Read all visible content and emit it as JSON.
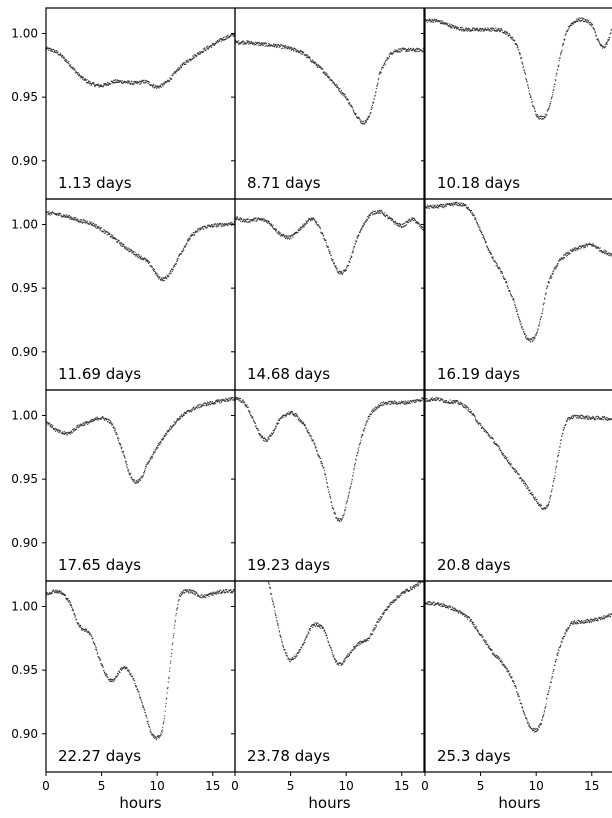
{
  "chart_data": {
    "type": "scatter",
    "layout": "4x3 grid of light-curve panels, shared axes",
    "xlabel": "hours",
    "xlim": [
      0,
      17
    ],
    "ylim": [
      0.87,
      1.02
    ],
    "x_ticks": [
      0,
      5,
      10,
      15
    ],
    "y_ticks": [
      "1.00",
      "0.95",
      "0.90"
    ],
    "y_tick_values": [
      1.0,
      0.95,
      0.9
    ],
    "grid": false,
    "marker_color": "#333333",
    "panels": [
      {
        "label": "1.13 days",
        "x": [
          0,
          1,
          2,
          3,
          4,
          5,
          6,
          7,
          8,
          9,
          10,
          11,
          12,
          13,
          14,
          15,
          16,
          17
        ],
        "y": [
          0.988,
          0.985,
          0.977,
          0.967,
          0.961,
          0.959,
          0.962,
          0.962,
          0.961,
          0.962,
          0.958,
          0.963,
          0.973,
          0.98,
          0.986,
          0.991,
          0.996,
          0.999
        ]
      },
      {
        "label": "8.71 days",
        "x": [
          0,
          1,
          2,
          3,
          4,
          5,
          6,
          7,
          8,
          9,
          10,
          10.5,
          11,
          11.5,
          12,
          12.5,
          13,
          14,
          15,
          16,
          17
        ],
        "y": [
          0.993,
          0.993,
          0.992,
          0.991,
          0.99,
          0.988,
          0.985,
          0.978,
          0.97,
          0.96,
          0.95,
          0.942,
          0.935,
          0.93,
          0.934,
          0.948,
          0.968,
          0.984,
          0.987,
          0.987,
          0.987
        ]
      },
      {
        "label": "10.18 days",
        "x": [
          0,
          1,
          2,
          3,
          4,
          5,
          6,
          7,
          8,
          8.5,
          9,
          9.5,
          10,
          10.5,
          11,
          11.5,
          12,
          12.5,
          13,
          14,
          15,
          15.5,
          16,
          16.5,
          17
        ],
        "y": [
          1.01,
          1.01,
          1.007,
          1.004,
          1.003,
          1.003,
          1.003,
          1.002,
          0.995,
          0.985,
          0.968,
          0.95,
          0.937,
          0.934,
          0.938,
          0.954,
          0.975,
          0.994,
          1.006,
          1.011,
          1.007,
          0.996,
          0.989,
          0.995,
          1.008
        ]
      },
      {
        "label": "11.69 days",
        "x": [
          0,
          1,
          2,
          3,
          4,
          5,
          6,
          7,
          8,
          9,
          9.5,
          10,
          10.5,
          11,
          11.5,
          12,
          13,
          14,
          15,
          16,
          17
        ],
        "y": [
          1.009,
          1.008,
          1.006,
          1.003,
          1.001,
          0.996,
          0.99,
          0.983,
          0.977,
          0.972,
          0.967,
          0.96,
          0.957,
          0.96,
          0.967,
          0.976,
          0.99,
          0.997,
          0.999,
          1.0,
          1.001
        ]
      },
      {
        "label": "14.68 days",
        "x": [
          0,
          1,
          2,
          3,
          4,
          5,
          6,
          7,
          8,
          9,
          9.5,
          10,
          10.5,
          11,
          12,
          13,
          14,
          15,
          16,
          17
        ],
        "y": [
          1.005,
          1.003,
          1.004,
          1.002,
          0.993,
          0.99,
          0.998,
          1.004,
          0.99,
          0.968,
          0.962,
          0.965,
          0.976,
          0.99,
          1.006,
          1.01,
          1.004,
          0.999,
          1.004,
          0.996
        ]
      },
      {
        "label": "16.19 days",
        "x": [
          0,
          1,
          2,
          3,
          4,
          5,
          6,
          7,
          8,
          8.5,
          9,
          9.5,
          10,
          10.5,
          11,
          12,
          13,
          14,
          15,
          16,
          17
        ],
        "y": [
          1.014,
          1.014,
          1.015,
          1.016,
          1.012,
          0.995,
          0.975,
          0.96,
          0.94,
          0.925,
          0.913,
          0.909,
          0.914,
          0.93,
          0.952,
          0.97,
          0.978,
          0.982,
          0.984,
          0.979,
          0.976
        ]
      },
      {
        "label": "17.65 days",
        "x": [
          0,
          1,
          2,
          3,
          4,
          5,
          6,
          7,
          7.5,
          8,
          8.5,
          9,
          10,
          11,
          12,
          13,
          14,
          15,
          16,
          17
        ],
        "y": [
          0.995,
          0.988,
          0.986,
          0.992,
          0.995,
          0.998,
          0.992,
          0.97,
          0.955,
          0.948,
          0.95,
          0.96,
          0.975,
          0.988,
          0.998,
          1.004,
          1.008,
          1.01,
          1.012,
          1.013
        ]
      },
      {
        "label": "19.23 days",
        "x": [
          0,
          1,
          2,
          2.5,
          3,
          4,
          5,
          6,
          7,
          8,
          8.5,
          9,
          9.5,
          10,
          11,
          12,
          13,
          14,
          15,
          16,
          17
        ],
        "y": [
          1.014,
          1.008,
          0.99,
          0.982,
          0.982,
          0.996,
          1.002,
          0.995,
          0.98,
          0.958,
          0.938,
          0.922,
          0.918,
          0.93,
          0.97,
          0.998,
          1.008,
          1.01,
          1.01,
          1.011,
          1.013
        ]
      },
      {
        "label": "20.8 days",
        "x": [
          0,
          1,
          2,
          3,
          4,
          5,
          6,
          7,
          8,
          9,
          10,
          10.5,
          11,
          11.5,
          12,
          12.5,
          13,
          14,
          15,
          16,
          17
        ],
        "y": [
          1.012,
          1.013,
          1.011,
          1.01,
          1.004,
          0.992,
          0.982,
          0.97,
          0.958,
          0.946,
          0.934,
          0.928,
          0.929,
          0.945,
          0.97,
          0.99,
          0.998,
          0.999,
          0.998,
          0.998,
          0.997
        ]
      },
      {
        "label": "22.27 days",
        "x": [
          0,
          1,
          2,
          3,
          4,
          5,
          5.5,
          6,
          7,
          8,
          9,
          9.5,
          10,
          10.5,
          11,
          11.5,
          12,
          13,
          14,
          15,
          16,
          17
        ],
        "y": [
          1.01,
          1.012,
          1.005,
          0.985,
          0.978,
          0.955,
          0.945,
          0.942,
          0.952,
          0.94,
          0.915,
          0.9,
          0.897,
          0.905,
          0.94,
          0.98,
          1.008,
          1.012,
          1.008,
          1.01,
          1.012,
          1.012
        ]
      },
      {
        "label": "23.78 days",
        "x": [
          3,
          3.5,
          4,
          4.5,
          5,
          6,
          7,
          8,
          8.5,
          9,
          9.5,
          10,
          11,
          12,
          13,
          14,
          15,
          16,
          17
        ],
        "y": [
          1.018,
          1.0,
          0.98,
          0.965,
          0.958,
          0.968,
          0.985,
          0.982,
          0.97,
          0.958,
          0.955,
          0.96,
          0.97,
          0.975,
          0.99,
          1.002,
          1.01,
          1.015,
          1.02
        ]
      },
      {
        "label": "25.3 days",
        "x": [
          0,
          1,
          2,
          3,
          4,
          5,
          6,
          7,
          8,
          9,
          9.5,
          10,
          10.5,
          11,
          12,
          13,
          14,
          15,
          16,
          17
        ],
        "y": [
          1.003,
          1.002,
          1.0,
          0.996,
          0.99,
          0.978,
          0.965,
          0.955,
          0.94,
          0.915,
          0.905,
          0.903,
          0.91,
          0.93,
          0.965,
          0.985,
          0.988,
          0.989,
          0.991,
          0.994
        ]
      }
    ]
  }
}
